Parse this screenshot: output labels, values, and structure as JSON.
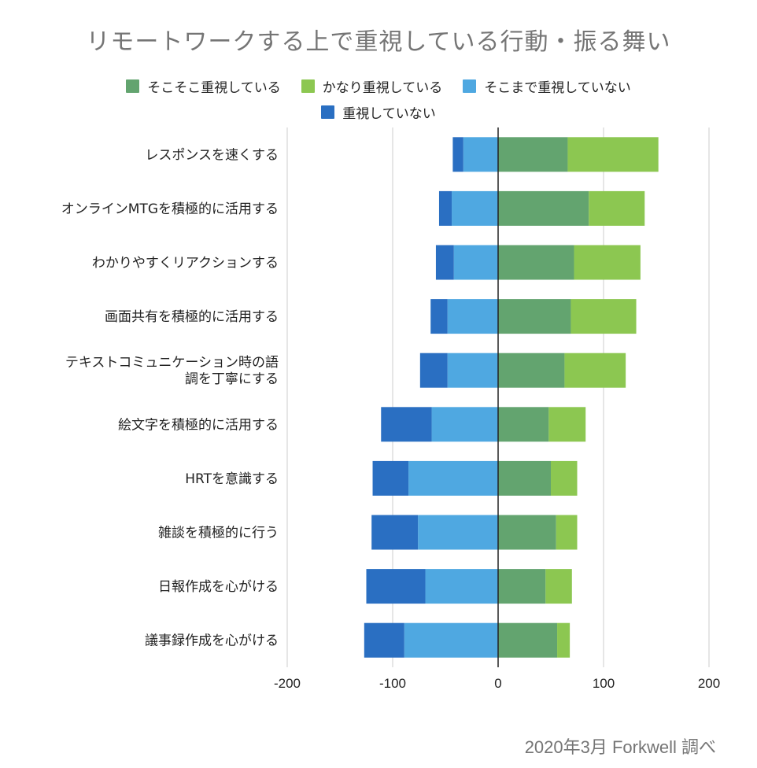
{
  "chart_data": {
    "type": "bar",
    "orientation": "horizontal",
    "stacked": true,
    "diverging": true,
    "title": "リモートワークする上で重視している行動・振る舞い",
    "xlabel": "",
    "ylabel": "",
    "xlim": [
      -200,
      200
    ],
    "xticks": [
      -200,
      -100,
      0,
      100,
      200
    ],
    "grid": true,
    "legend_position": "top",
    "categories": [
      [
        "レスポンスを速くする"
      ],
      [
        "オンラインMTGを積極的に活用する"
      ],
      [
        "わかりやすくリアクションする"
      ],
      [
        "画面共有を積極的に活用する"
      ],
      [
        "テキストコミュニケーション時の語",
        "調を丁寧にする"
      ],
      [
        "絵文字を積極的に活用する"
      ],
      [
        "HRTを意識する"
      ],
      [
        "雑談を積極的に行う"
      ],
      [
        "日報作成を心がける"
      ],
      [
        "議事録作成を心がける"
      ]
    ],
    "series": [
      {
        "name": "そこそこ重視している",
        "color": "#63a46f",
        "values": [
          66,
          86,
          72,
          69,
          63,
          48,
          50,
          55,
          45,
          56
        ]
      },
      {
        "name": "かなり重視している",
        "color": "#8cc751",
        "values": [
          86,
          53,
          63,
          62,
          58,
          35,
          25,
          20,
          25,
          12
        ]
      },
      {
        "name": "そこまで重視していない",
        "color": "#4fa8e1",
        "values": [
          -33,
          -44,
          -42,
          -48,
          -48,
          -63,
          -85,
          -76,
          -69,
          -89
        ]
      },
      {
        "name": "重視していない",
        "color": "#2a6fc2",
        "values": [
          -10,
          -12,
          -17,
          -16,
          -26,
          -48,
          -34,
          -44,
          -56,
          -38
        ]
      }
    ]
  },
  "legend": {
    "rows": [
      [
        0,
        1,
        2
      ],
      [
        3
      ]
    ]
  },
  "source": "2020年3月 Forkwell 調べ"
}
